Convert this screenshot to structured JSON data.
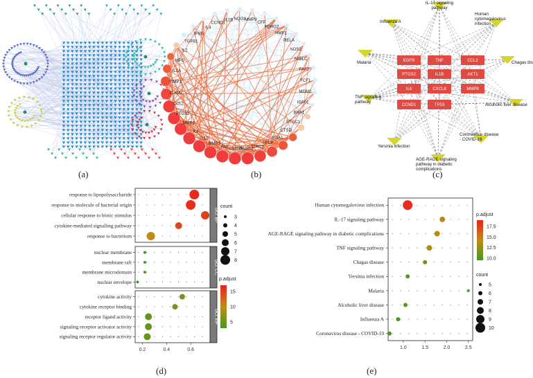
{
  "panel_labels": [
    "(a)",
    "(b)",
    "(c)",
    "(d)",
    "(e)"
  ],
  "panel_b": {
    "genes": [
      "CCND1",
      "IL1B",
      "NQO1",
      "MMP9",
      "CFP",
      "PDRG2",
      "HMF1",
      "RELA",
      "NOS2",
      "FABLC",
      "FAAT",
      "FCF1",
      "MDM2",
      "IGF01",
      "BRAT",
      "PTGC1",
      "CTSD",
      "PGA1",
      "SELP",
      "CIRC3",
      "PNBC2",
      "CSTN1",
      "FAT",
      "MMP3",
      "IL1B",
      "IL6",
      "MMP9",
      "PTGS2",
      "CCL2",
      "ICAM1",
      "TIMP1",
      "IL1A",
      "MPO",
      "IL2",
      "TGFB1",
      "IFNG",
      "IL4"
    ]
  },
  "panel_c": {
    "genes": [
      "EGFR",
      "TNF",
      "CCL2",
      "PTGS2",
      "IL1B",
      "AKT1",
      "IL6",
      "CXCL8",
      "MMP9",
      "CCND1",
      "TP53"
    ],
    "pathways": [
      "IL-17 signaling pathway",
      "Influenza A",
      "Human cytomegalovirus infection",
      "Malaria",
      "Chagas disease",
      "TNF signaling pathway",
      "Alcoholic liver disease",
      "Yersinia infection",
      "Coronavirus disease - COVID-19",
      "AGE-RAGE signaling pathway in diabetic complications"
    ]
  },
  "chart_data": [
    {
      "type": "scatter",
      "panel": "(d)",
      "title": "",
      "xlabel": "",
      "ylabel": "",
      "x_ticks": [
        "0.2",
        "0.4",
        "0.6"
      ],
      "xlim": [
        0.14,
        0.76
      ],
      "groups": [
        {
          "name": "GO: BP",
          "terms": [
            {
              "label": "response to lipopolysaccharide",
              "x": 0.63,
              "count": 8,
              "p_adjust": 16.5
            },
            {
              "label": "response to molecule of bacterial origin",
              "x": 0.6,
              "count": 8,
              "p_adjust": 16
            },
            {
              "label": "cellular response to biotic stimulus",
              "x": 0.72,
              "count": 7,
              "p_adjust": 15
            },
            {
              "label": "cytokine-mediated signalling pathway",
              "x": 0.5,
              "count": 6,
              "p_adjust": 14.5
            },
            {
              "label": "response to bacterium",
              "x": 0.27,
              "count": 7,
              "p_adjust": 10
            }
          ]
        },
        {
          "name": "GO: CC",
          "terms": [
            {
              "label": "nuclear membrane",
              "x": 0.22,
              "count": 3,
              "p_adjust": 3
            },
            {
              "label": "membrane raft",
              "x": 0.22,
              "count": 3,
              "p_adjust": 4
            },
            {
              "label": "membrane microdomain",
              "x": 0.22,
              "count": 3,
              "p_adjust": 4
            },
            {
              "label": "nuclear envelope",
              "x": 0.16,
              "count": 3,
              "p_adjust": 3
            }
          ]
        },
        {
          "name": "GO: MF",
          "terms": [
            {
              "label": "cytokine activity",
              "x": 0.53,
              "count": 5,
              "p_adjust": 6
            },
            {
              "label": "cytokine receptor binding",
              "x": 0.47,
              "count": 5,
              "p_adjust": 6
            },
            {
              "label": "receptor ligand activity",
              "x": 0.25,
              "count": 6,
              "p_adjust": 5
            },
            {
              "label": "signaling receptor activator activity",
              "x": 0.25,
              "count": 6,
              "p_adjust": 5
            },
            {
              "label": "signaling receptor regulator activity",
              "x": 0.24,
              "count": 6,
              "p_adjust": 5
            }
          ]
        }
      ],
      "size_legend": {
        "title": "count",
        "values": [
          3,
          4,
          5,
          6,
          7,
          8
        ]
      },
      "color_legend": {
        "title": "p.adjust",
        "ticks": [
          5,
          10,
          15
        ],
        "range": [
          3,
          17
        ]
      }
    },
    {
      "type": "scatter",
      "panel": "(e)",
      "title": "",
      "xlabel": "",
      "ylabel": "",
      "x_ticks": [
        "1.0",
        "1.5",
        "2.0",
        "2.5"
      ],
      "xlim": [
        0.65,
        2.6
      ],
      "terms": [
        {
          "label": "Human cytomegalovirus infection",
          "x": 1.1,
          "count": 10,
          "p_adjust": 18.5
        },
        {
          "label": "IL-17 signaling pathway",
          "x": 1.9,
          "count": 7,
          "p_adjust": 14.5
        },
        {
          "label": "AGE-RAGE signaling pathway in diabetic complications",
          "x": 1.78,
          "count": 7,
          "p_adjust": 14
        },
        {
          "label": "TNF signaling pathway",
          "x": 1.6,
          "count": 7,
          "p_adjust": 13.5
        },
        {
          "label": "Chagas disease",
          "x": 1.5,
          "count": 6,
          "p_adjust": 11
        },
        {
          "label": "Yersinia infection",
          "x": 1.1,
          "count": 6,
          "p_adjust": 10.5
        },
        {
          "label": "Malaria",
          "x": 2.5,
          "count": 5,
          "p_adjust": 10
        },
        {
          "label": "Alcoholic liver disease",
          "x": 1.05,
          "count": 6,
          "p_adjust": 10.5
        },
        {
          "label": "Influenza A",
          "x": 0.88,
          "count": 6,
          "p_adjust": 10
        },
        {
          "label": "Coronavirus disease - COVID-19",
          "x": 0.68,
          "count": 6,
          "p_adjust": 10
        }
      ],
      "size_legend": {
        "title": "count",
        "values": [
          5,
          6,
          7,
          8,
          9,
          10
        ]
      },
      "color_legend": {
        "title": "p.adjust",
        "ticks": [
          10.0,
          12.5,
          15.0,
          17.5
        ],
        "range": [
          9.5,
          19
        ]
      }
    }
  ],
  "colors": {
    "low": "#3f9a21",
    "mid": "#c28a18",
    "high": "#e8221f",
    "network_blue": "#1f86c9",
    "network_edge": "#9aa7d8",
    "node_red": "#e04a42",
    "pathway_yellow": "#d8d52a"
  }
}
